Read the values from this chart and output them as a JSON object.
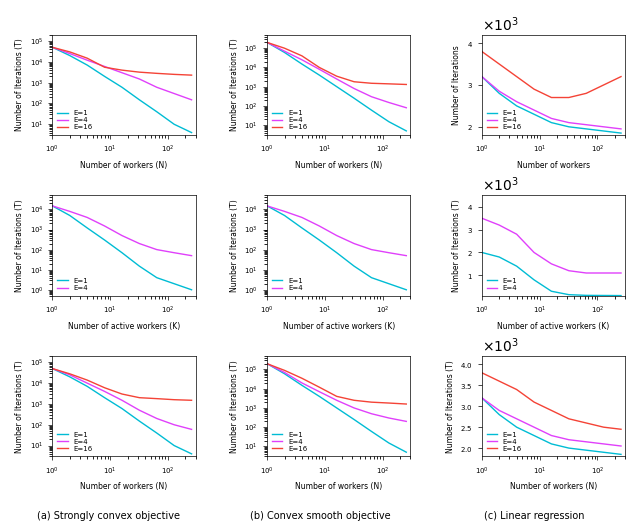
{
  "colors": {
    "E1": "#00bcd4",
    "E4": "#e040fb",
    "E16": "#f44336"
  },
  "x": [
    1,
    2,
    4,
    8,
    16,
    32,
    64,
    128,
    256
  ],
  "row1_col_a": {
    "E1": [
      50000,
      20000,
      7000,
      2000,
      600,
      150,
      40,
      10,
      4
    ],
    "E4": [
      50000,
      25000,
      12000,
      6000,
      3000,
      1500,
      600,
      300,
      150
    ],
    "E16": [
      50000,
      30000,
      15000,
      5500,
      4000,
      3200,
      2800,
      2500,
      2300
    ]
  },
  "row1_col_b": {
    "E1": [
      200000,
      60000,
      15000,
      4000,
      1000,
      250,
      60,
      15,
      5
    ],
    "E4": [
      200000,
      70000,
      25000,
      8000,
      2500,
      800,
      300,
      150,
      80
    ],
    "E16": [
      200000,
      100000,
      40000,
      10000,
      3500,
      1800,
      1500,
      1400,
      1300
    ]
  },
  "row1_col_c": {
    "E1": [
      3200,
      2800,
      2500,
      2300,
      2100,
      2000,
      1950,
      1900,
      1850
    ],
    "E4": [
      3200,
      2850,
      2600,
      2400,
      2200,
      2100,
      2050,
      2000,
      1950
    ],
    "E16": [
      3800,
      3500,
      3200,
      2900,
      2700,
      2700,
      2800,
      3000,
      3200
    ]
  },
  "row2_col_a": {
    "E1": [
      15000,
      5000,
      1200,
      300,
      70,
      15,
      4,
      2,
      1
    ],
    "E4": [
      15000,
      8000,
      4000,
      1500,
      500,
      200,
      100,
      70,
      50
    ]
  },
  "row2_col_b": {
    "E1": [
      15000,
      5000,
      1200,
      300,
      70,
      15,
      4,
      2,
      1
    ],
    "E4": [
      15000,
      8000,
      4000,
      1500,
      500,
      200,
      100,
      70,
      50
    ]
  },
  "row2_col_c": {
    "E1": [
      2000,
      1800,
      1400,
      800,
      300,
      150,
      120,
      115,
      110
    ],
    "E4": [
      3500,
      3200,
      2800,
      2000,
      1500,
      1200,
      1100,
      1100,
      1100
    ]
  },
  "row3_col_a": {
    "E1": [
      50000,
      20000,
      7000,
      2000,
      600,
      150,
      40,
      10,
      4
    ],
    "E4": [
      50000,
      25000,
      10000,
      4000,
      1500,
      500,
      200,
      100,
      60
    ],
    "E16": [
      50000,
      28000,
      14000,
      6000,
      3000,
      2000,
      1800,
      1600,
      1500
    ]
  },
  "row3_col_b": {
    "E1": [
      200000,
      60000,
      15000,
      4000,
      1000,
      250,
      60,
      15,
      5
    ],
    "E4": [
      200000,
      70000,
      20000,
      7000,
      2500,
      1000,
      500,
      300,
      200
    ],
    "E16": [
      200000,
      90000,
      35000,
      12000,
      4000,
      2500,
      2000,
      1800,
      1600
    ]
  },
  "row3_col_c": {
    "E1": [
      3200,
      2800,
      2500,
      2300,
      2100,
      2000,
      1950,
      1900,
      1850
    ],
    "E4": [
      3200,
      2900,
      2700,
      2500,
      2300,
      2200,
      2150,
      2100,
      2050
    ],
    "E16": [
      3800,
      3600,
      3400,
      3100,
      2900,
      2700,
      2600,
      2500,
      2450
    ]
  },
  "xlabel_N": "Number of workers (N)",
  "xlabel_K": "Number of active workers (K)",
  "xlabel_Nonly": "Number of workers",
  "ylabel_T": "Number of Iterations (T)",
  "ylabel_noT": "Number of Iterations",
  "caption_a": "(a) Strongly convex objective",
  "caption_b": "(b) Convex smooth objective",
  "caption_c": "(c) Linear regression"
}
